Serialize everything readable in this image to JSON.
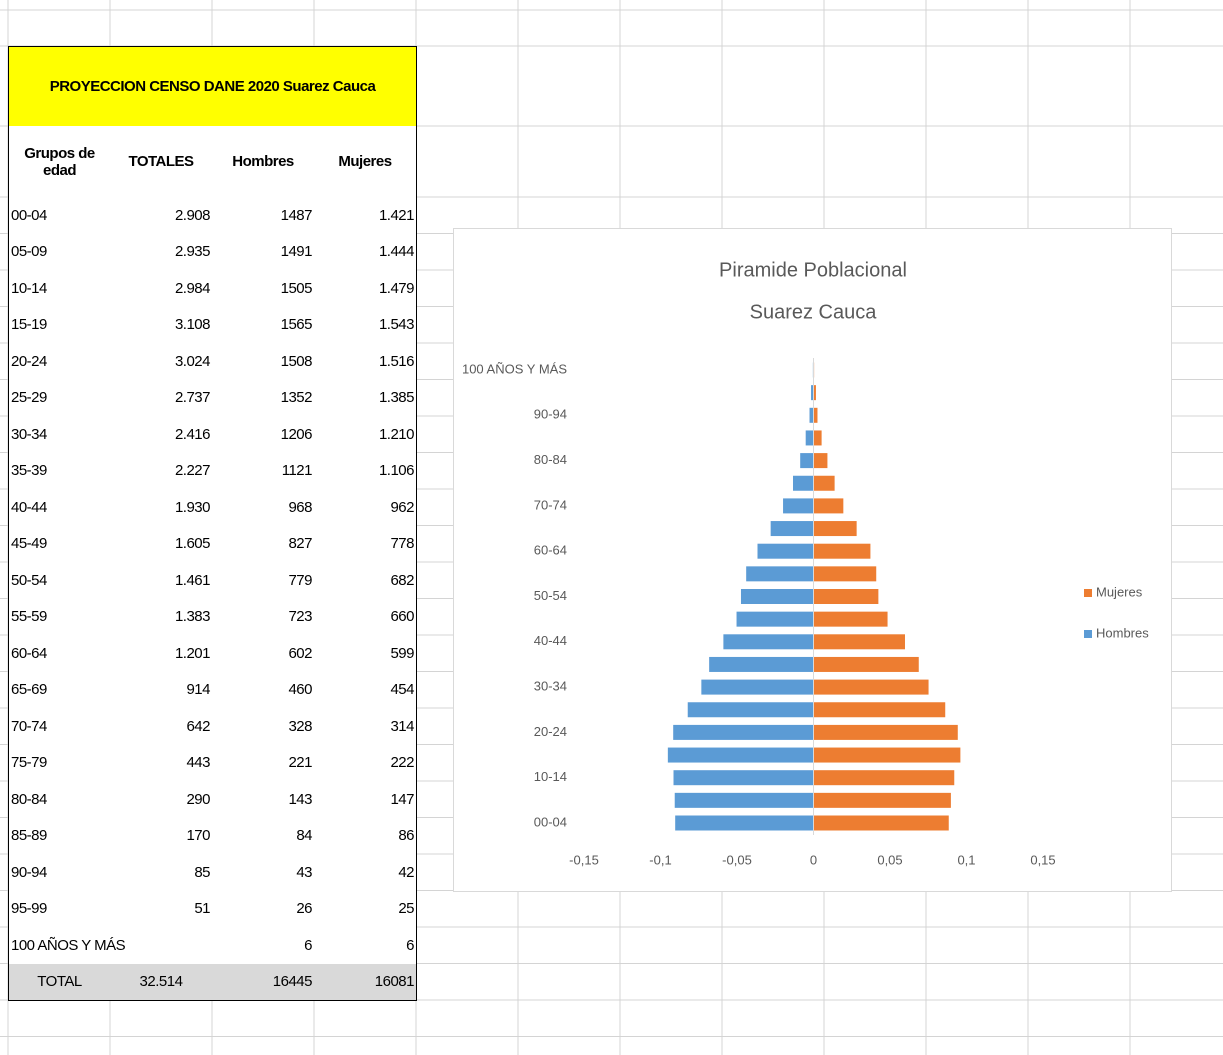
{
  "table": {
    "title": "PROYECCION CENSO DANE  2020 Suarez Cauca",
    "headers": [
      "Grupos de edad",
      "TOTALES",
      "Hombres",
      "Mujeres"
    ],
    "rows": [
      [
        "00-04",
        "2.908",
        "1487",
        "1.421"
      ],
      [
        "05-09",
        "2.935",
        "1491",
        "1.444"
      ],
      [
        "10-14",
        "2.984",
        "1505",
        "1.479"
      ],
      [
        "15-19",
        "3.108",
        "1565",
        "1.543"
      ],
      [
        "20-24",
        "3.024",
        "1508",
        "1.516"
      ],
      [
        "25-29",
        "2.737",
        "1352",
        "1.385"
      ],
      [
        "30-34",
        "2.416",
        "1206",
        "1.210"
      ],
      [
        "35-39",
        "2.227",
        "1121",
        "1.106"
      ],
      [
        "40-44",
        "1.930",
        "968",
        "962"
      ],
      [
        "45-49",
        "1.605",
        "827",
        "778"
      ],
      [
        "50-54",
        "1.461",
        "779",
        "682"
      ],
      [
        "55-59",
        "1.383",
        "723",
        "660"
      ],
      [
        "60-64",
        "1.201",
        "602",
        "599"
      ],
      [
        "65-69",
        "914",
        "460",
        "454"
      ],
      [
        "70-74",
        "642",
        "328",
        "314"
      ],
      [
        "75-79",
        "443",
        "221",
        "222"
      ],
      [
        "80-84",
        "290",
        "143",
        "147"
      ],
      [
        "85-89",
        "170",
        "84",
        "86"
      ],
      [
        "90-94",
        "85",
        "43",
        "42"
      ],
      [
        "95-99",
        "51",
        "26",
        "25"
      ]
    ],
    "last_row": [
      "100 AÑOS Y MÁS",
      "6",
      "6"
    ],
    "total_row": [
      "TOTAL",
      "32.514",
      "16445",
      "16081"
    ]
  },
  "chart_data": {
    "type": "bar",
    "orientation": "horizontal",
    "title": "Piramide Poblacional",
    "subtitle": "Suarez Cauca",
    "categories": [
      "00-04",
      null,
      "10-14",
      null,
      "20-24",
      null,
      "30-34",
      null,
      "40-44",
      null,
      "50-54",
      null,
      "60-64",
      null,
      "70-74",
      null,
      "80-84",
      null,
      "90-94",
      null,
      "100 AÑOS Y MÁS"
    ],
    "series": [
      {
        "name": "Mujeres",
        "color": "#ed7d31",
        "values": [
          0.0884,
          0.0898,
          0.092,
          0.096,
          0.0943,
          0.0861,
          0.0752,
          0.0688,
          0.0598,
          0.0484,
          0.0424,
          0.041,
          0.0372,
          0.0282,
          0.0195,
          0.0138,
          0.0091,
          0.0053,
          0.0026,
          0.0016,
          0.0004
        ]
      },
      {
        "name": "Hombres",
        "color": "#5b9bd5",
        "values": [
          -0.0904,
          -0.0907,
          -0.0915,
          -0.0952,
          -0.0917,
          -0.0822,
          -0.0733,
          -0.0682,
          -0.0589,
          -0.0503,
          -0.0474,
          -0.044,
          -0.0366,
          -0.028,
          -0.0199,
          -0.0134,
          -0.0087,
          -0.0051,
          -0.0026,
          -0.0016,
          -0.0004
        ]
      }
    ],
    "xlim": [
      -0.15,
      0.15
    ],
    "xticks": [
      {
        "value": -0.15,
        "label": "-0,15"
      },
      {
        "value": -0.1,
        "label": "-0,1"
      },
      {
        "value": -0.05,
        "label": "-0,05"
      },
      0,
      {
        "value": 0.05,
        "label": "0,05"
      },
      {
        "value": 0.1,
        "label": "0,1"
      },
      {
        "value": 0.15,
        "label": "0,15"
      }
    ],
    "legend": "right",
    "grid": false
  }
}
